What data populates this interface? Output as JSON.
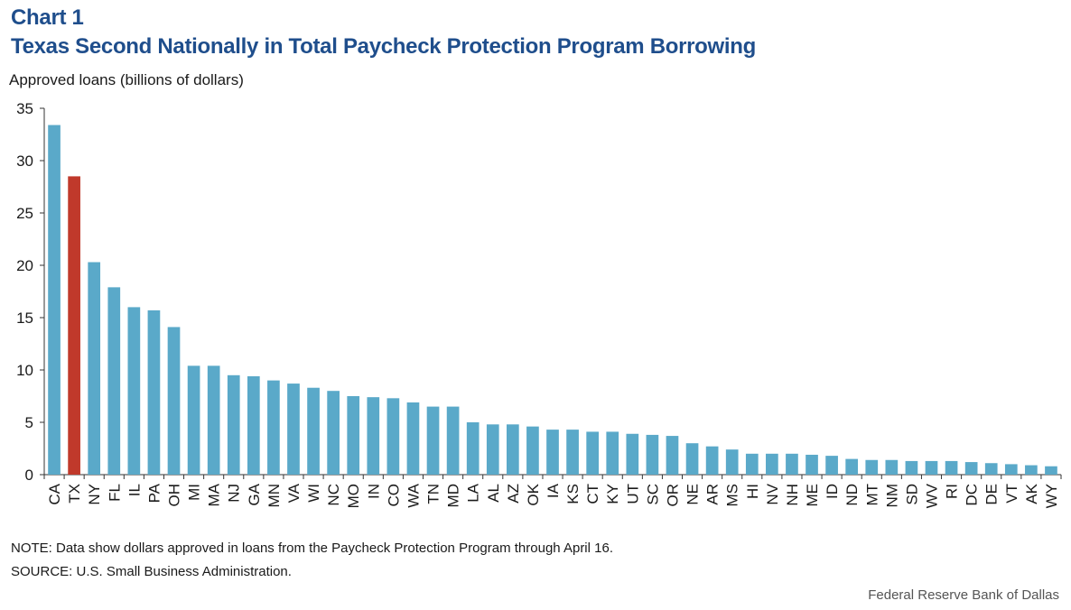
{
  "header": {
    "chart_number": "Chart 1",
    "title": "Texas Second Nationally in Total Paycheck Protection Program Borrowing"
  },
  "footer": {
    "note": "NOTE: Data show dollars approved in loans from the Paycheck Protection Program through April 16.",
    "source": "SOURCE: U.S. Small Business Administration.",
    "credit": "Federal Reserve Bank of Dallas"
  },
  "colors": {
    "bar": "#5aa9c9",
    "highlight": "#c0392b",
    "title": "#1f4e8c",
    "axis": "#333333"
  },
  "chart_data": {
    "type": "bar",
    "ylabel": "Approved loans (billions of dollars)",
    "xlabel": "",
    "ylim": [
      0,
      35
    ],
    "yticks": [
      0,
      5,
      10,
      15,
      20,
      25,
      30,
      35
    ],
    "grid": false,
    "highlight_category": "TX",
    "categories": [
      "CA",
      "TX",
      "NY",
      "FL",
      "IL",
      "PA",
      "OH",
      "MI",
      "MA",
      "NJ",
      "GA",
      "MN",
      "VA",
      "WI",
      "NC",
      "MO",
      "IN",
      "CO",
      "WA",
      "TN",
      "MD",
      "LA",
      "AL",
      "AZ",
      "OK",
      "IA",
      "KS",
      "CT",
      "KY",
      "UT",
      "SC",
      "OR",
      "NE",
      "AR",
      "MS",
      "HI",
      "NV",
      "NH",
      "ME",
      "ID",
      "ND",
      "MT",
      "NM",
      "SD",
      "WV",
      "RI",
      "DC",
      "DE",
      "VT",
      "AK",
      "WY"
    ],
    "values": [
      33.4,
      28.5,
      20.3,
      17.9,
      16.0,
      15.7,
      14.1,
      10.4,
      10.4,
      9.5,
      9.4,
      9.0,
      8.7,
      8.3,
      8.0,
      7.5,
      7.4,
      7.3,
      6.9,
      6.5,
      6.5,
      5.0,
      4.8,
      4.8,
      4.6,
      4.3,
      4.3,
      4.1,
      4.1,
      3.9,
      3.8,
      3.7,
      3.0,
      2.7,
      2.4,
      2.0,
      2.0,
      2.0,
      1.9,
      1.8,
      1.5,
      1.4,
      1.4,
      1.3,
      1.3,
      1.3,
      1.2,
      1.1,
      1.0,
      0.9,
      0.8
    ]
  }
}
